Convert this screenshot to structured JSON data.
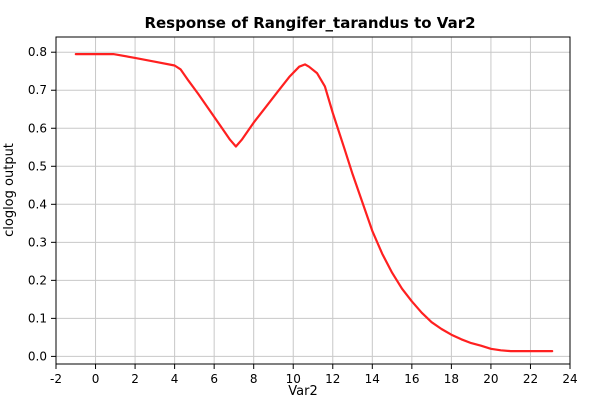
{
  "chart_data": {
    "type": "line",
    "title": "Response of Rangifer_tarandus to Var2",
    "xlabel": "Var2",
    "ylabel": "cloglog output",
    "xlim": [
      -2,
      24
    ],
    "ylim": [
      -0.02,
      0.84
    ],
    "xticks": [
      "-2",
      "0",
      "2",
      "4",
      "6",
      "8",
      "10",
      "12",
      "14",
      "16",
      "18",
      "20",
      "22",
      "24"
    ],
    "yticks": [
      "0.0",
      "0.1",
      "0.2",
      "0.3",
      "0.4",
      "0.5",
      "0.6",
      "0.7",
      "0.8"
    ],
    "grid": true,
    "line_color": "#ff2020",
    "series": [
      {
        "x": [
          -1.0,
          0.9,
          2.0,
          3.0,
          4.0,
          4.3,
          4.7,
          5.2,
          5.8,
          6.4,
          6.8,
          7.1,
          7.4,
          8.0,
          8.6,
          9.2,
          9.8,
          10.3,
          10.6,
          10.8,
          11.2,
          11.6,
          12.0,
          12.6,
          13.0,
          13.5,
          14.0,
          14.5,
          15.0,
          15.5,
          16.0,
          16.5,
          17.0,
          17.5,
          18.0,
          18.5,
          19.0,
          19.5,
          20.0,
          20.5,
          21.0,
          22.0,
          23.1
        ],
        "y": [
          0.795,
          0.795,
          0.785,
          0.775,
          0.765,
          0.755,
          0.725,
          0.69,
          0.645,
          0.6,
          0.57,
          0.552,
          0.57,
          0.615,
          0.655,
          0.695,
          0.735,
          0.762,
          0.768,
          0.762,
          0.745,
          0.71,
          0.64,
          0.545,
          0.48,
          0.405,
          0.33,
          0.27,
          0.22,
          0.178,
          0.145,
          0.115,
          0.09,
          0.072,
          0.057,
          0.045,
          0.035,
          0.028,
          0.02,
          0.016,
          0.014,
          0.014,
          0.014
        ]
      }
    ]
  }
}
